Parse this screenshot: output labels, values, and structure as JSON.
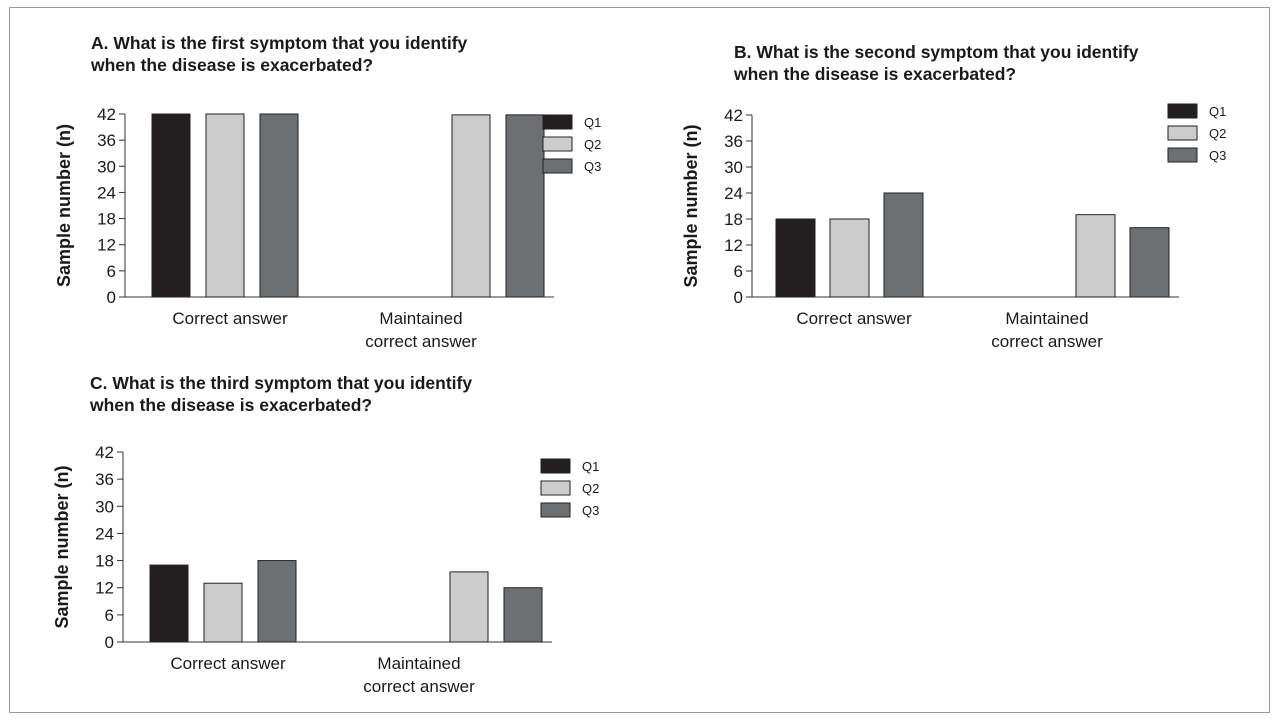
{
  "series_colors": {
    "Q1": "#231f20",
    "Q2": "#cccccc",
    "Q3": "#6d7072"
  },
  "chart_data": [
    {
      "type": "bar",
      "title": [
        "A. What is the first symptom that you identify",
        "when the disease is exacerbated?"
      ],
      "ylabel": "Sample number (n)",
      "xlabel": "",
      "categories": [
        [
          "Correct answer"
        ],
        [
          "Maintained",
          "correct answer"
        ]
      ],
      "ylim": [
        0,
        42
      ],
      "yticks": [
        0,
        6,
        12,
        18,
        24,
        30,
        36,
        42
      ],
      "grid": false,
      "legend_position": "top-right",
      "series": [
        {
          "name": "Q1",
          "values": [
            42,
            0
          ]
        },
        {
          "name": "Q2",
          "values": [
            42,
            41.8
          ]
        },
        {
          "name": "Q3",
          "values": [
            42,
            41.8
          ]
        }
      ]
    },
    {
      "type": "bar",
      "title": [
        "B. What is the second symptom that you identify",
        "when the disease is exacerbated?"
      ],
      "ylabel": "Sample number (n)",
      "xlabel": "",
      "categories": [
        [
          "Correct answer"
        ],
        [
          "Maintained",
          "correct answer"
        ]
      ],
      "ylim": [
        0,
        42
      ],
      "yticks": [
        0,
        6,
        12,
        18,
        24,
        30,
        36,
        42
      ],
      "grid": false,
      "legend_position": "top-right",
      "series": [
        {
          "name": "Q1",
          "values": [
            18,
            0
          ]
        },
        {
          "name": "Q2",
          "values": [
            18,
            19
          ]
        },
        {
          "name": "Q3",
          "values": [
            24,
            16
          ]
        }
      ]
    },
    {
      "type": "bar",
      "title": [
        "C. What is the third symptom that you identify",
        "when the disease is exacerbated?"
      ],
      "ylabel": "Sample number (n)",
      "xlabel": "",
      "categories": [
        [
          "Correct answer"
        ],
        [
          "Maintained",
          "correct answer"
        ]
      ],
      "ylim": [
        0,
        42
      ],
      "yticks": [
        0,
        6,
        12,
        18,
        24,
        30,
        36,
        42
      ],
      "grid": false,
      "legend_position": "top-right",
      "series": [
        {
          "name": "Q1",
          "values": [
            17,
            0
          ]
        },
        {
          "name": "Q2",
          "values": [
            13,
            15.5
          ]
        },
        {
          "name": "Q3",
          "values": [
            18,
            12
          ]
        }
      ]
    }
  ]
}
